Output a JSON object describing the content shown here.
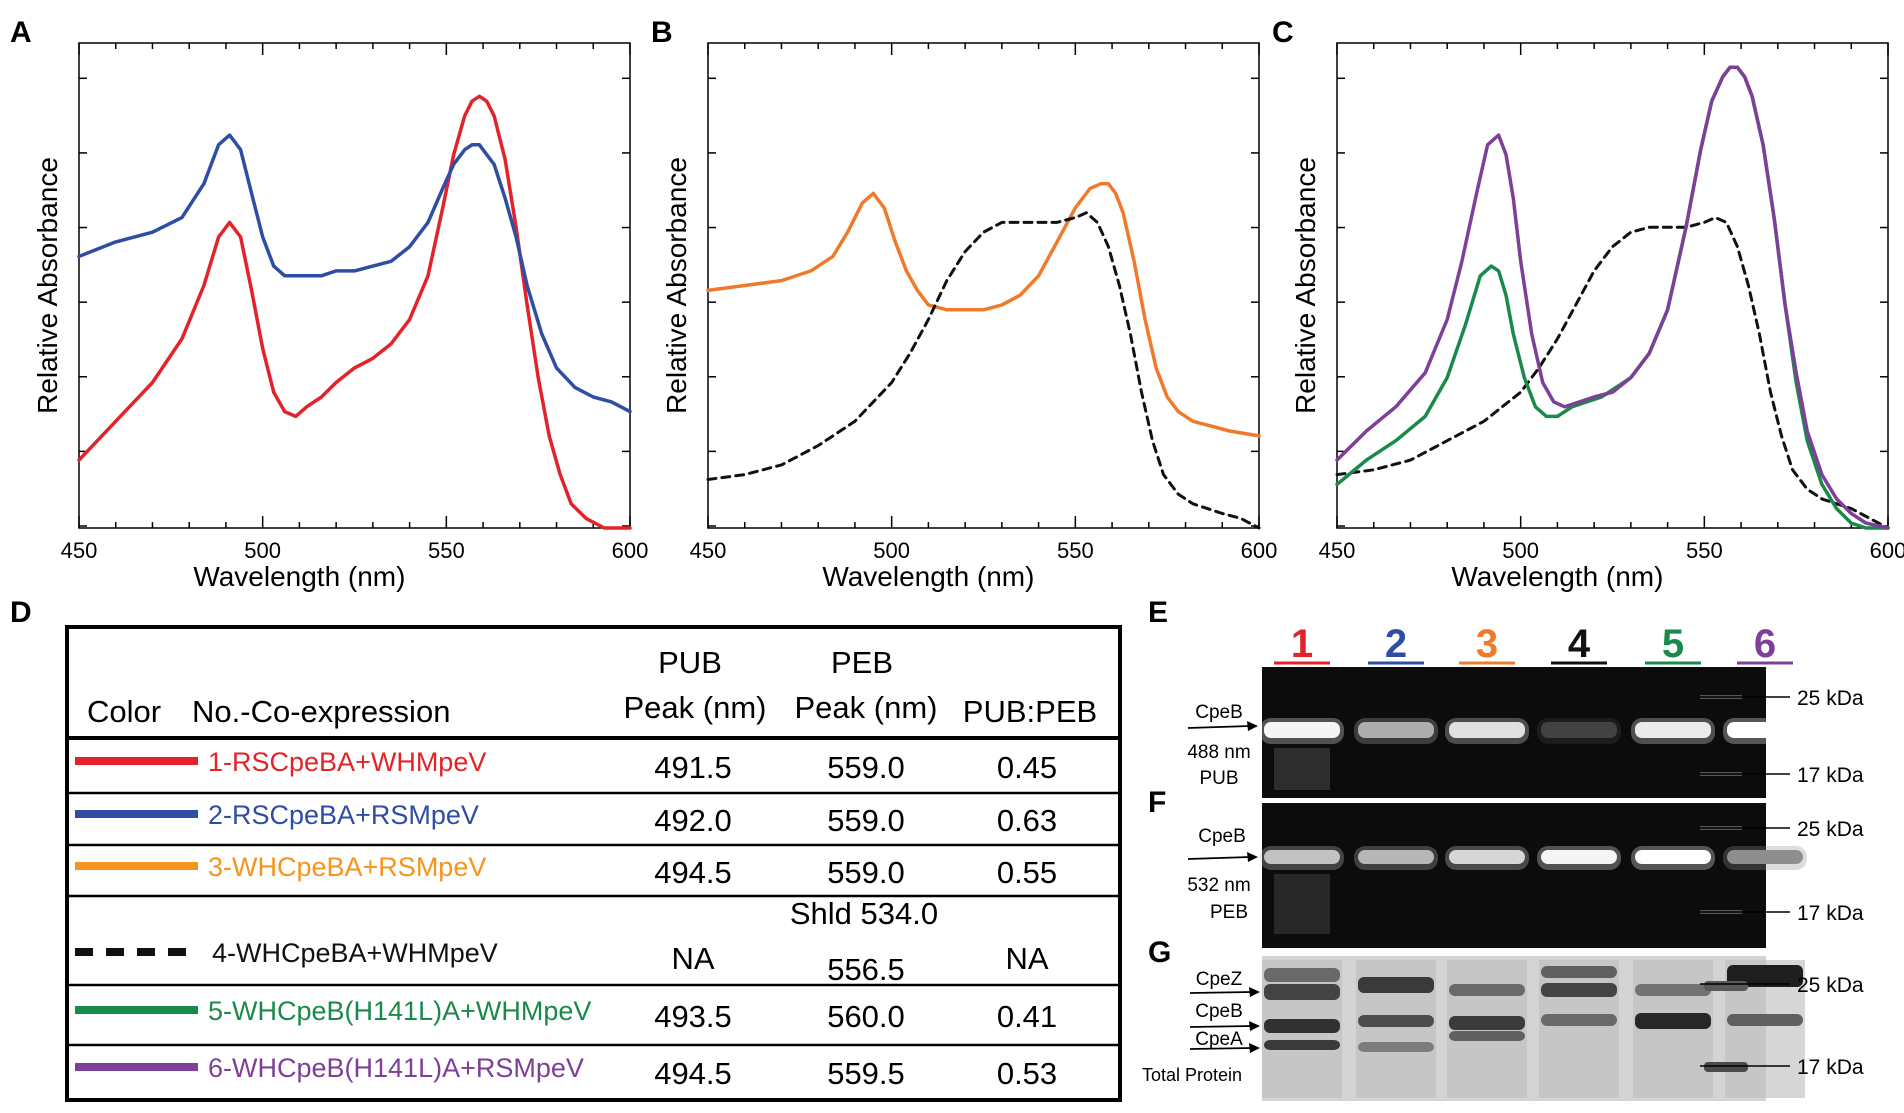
{
  "panels": {
    "A": "A",
    "B": "B",
    "C": "C",
    "D": "D",
    "E": "E",
    "F": "F",
    "G": "G"
  },
  "colors": {
    "red": "#e3232a",
    "blue": "#2f4ea3",
    "orange": "#f07a2b",
    "orange_table": "#f7941d",
    "black": "#111111",
    "green": "#1a8a4a",
    "purple": "#7d3f98"
  },
  "chart_data": [
    {
      "id": "A",
      "type": "line",
      "title": "",
      "xlabel": "Wavelength (nm)",
      "ylabel": "Relative Absorbance",
      "xlim": [
        450,
        600
      ],
      "ylim": [
        0,
        1
      ],
      "xticks": [
        450,
        500,
        550,
        600
      ],
      "series": [
        {
          "name": "1-RSCpeBA+WHMpeV",
          "color": "#e3232a",
          "dash": false,
          "x": [
            450,
            460,
            470,
            478,
            484,
            488,
            491,
            494,
            497,
            500,
            503,
            506,
            509,
            512,
            516,
            520,
            525,
            530,
            535,
            540,
            545,
            549,
            552,
            555,
            557,
            559,
            561,
            563,
            566,
            569,
            572,
            575,
            578,
            581,
            584,
            588,
            593,
            600
          ],
          "y": [
            0.14,
            0.22,
            0.3,
            0.39,
            0.5,
            0.6,
            0.63,
            0.6,
            0.49,
            0.37,
            0.28,
            0.24,
            0.23,
            0.25,
            0.27,
            0.3,
            0.33,
            0.35,
            0.38,
            0.43,
            0.52,
            0.66,
            0.77,
            0.85,
            0.88,
            0.89,
            0.88,
            0.85,
            0.76,
            0.62,
            0.46,
            0.31,
            0.19,
            0.11,
            0.05,
            0.02,
            0.0,
            -0.02
          ]
        },
        {
          "name": "2-RSCpeBA+RSMpeV",
          "color": "#2f4ea3",
          "dash": false,
          "x": [
            450,
            460,
            470,
            478,
            484,
            488,
            491,
            494,
            497,
            500,
            503,
            506,
            510,
            516,
            520,
            525,
            530,
            535,
            540,
            545,
            549,
            552,
            555,
            557,
            559,
            561,
            563,
            566,
            569,
            572,
            576,
            580,
            585,
            590,
            595,
            600
          ],
          "y": [
            0.56,
            0.59,
            0.61,
            0.64,
            0.71,
            0.79,
            0.81,
            0.78,
            0.69,
            0.6,
            0.54,
            0.52,
            0.52,
            0.52,
            0.53,
            0.53,
            0.54,
            0.55,
            0.58,
            0.63,
            0.7,
            0.75,
            0.78,
            0.79,
            0.79,
            0.77,
            0.75,
            0.68,
            0.6,
            0.5,
            0.4,
            0.33,
            0.29,
            0.27,
            0.26,
            0.24
          ]
        }
      ]
    },
    {
      "id": "B",
      "type": "line",
      "title": "",
      "xlabel": "Wavelength (nm)",
      "ylabel": "Relative Absorbance",
      "xlim": [
        450,
        600
      ],
      "ylim": [
        0,
        1
      ],
      "xticks": [
        450,
        500,
        550,
        600
      ],
      "series": [
        {
          "name": "3-WHCpeBA+RSMpeV",
          "color": "#f07a2b",
          "dash": false,
          "x": [
            450,
            460,
            470,
            478,
            484,
            488,
            492,
            495,
            498,
            501,
            504,
            507,
            510,
            515,
            520,
            525,
            530,
            535,
            540,
            545,
            550,
            554,
            557,
            559,
            561,
            563,
            566,
            569,
            572,
            575,
            578,
            582,
            587,
            592,
            600
          ],
          "y": [
            0.49,
            0.5,
            0.51,
            0.53,
            0.56,
            0.61,
            0.67,
            0.69,
            0.66,
            0.59,
            0.53,
            0.49,
            0.46,
            0.45,
            0.45,
            0.45,
            0.46,
            0.48,
            0.52,
            0.59,
            0.66,
            0.7,
            0.71,
            0.71,
            0.69,
            0.65,
            0.55,
            0.43,
            0.33,
            0.27,
            0.24,
            0.22,
            0.21,
            0.2,
            0.19
          ]
        },
        {
          "name": "4-WHCpeBA+WHMpeV",
          "color": "#111111",
          "dash": true,
          "x": [
            450,
            460,
            470,
            480,
            490,
            500,
            505,
            510,
            515,
            520,
            525,
            530,
            535,
            540,
            545,
            550,
            553,
            556,
            559,
            562,
            565,
            568,
            571,
            574,
            578,
            582,
            586,
            590,
            595,
            600
          ],
          "y": [
            0.1,
            0.11,
            0.13,
            0.17,
            0.22,
            0.3,
            0.36,
            0.43,
            0.51,
            0.57,
            0.61,
            0.63,
            0.63,
            0.63,
            0.63,
            0.64,
            0.65,
            0.63,
            0.58,
            0.5,
            0.4,
            0.28,
            0.18,
            0.11,
            0.07,
            0.05,
            0.04,
            0.03,
            0.02,
            0.0
          ]
        }
      ]
    },
    {
      "id": "C",
      "type": "line",
      "title": "",
      "xlabel": "Wavelength (nm)",
      "ylabel": "Relative Absorbance",
      "xlim": [
        450,
        600
      ],
      "ylim": [
        0,
        1
      ],
      "xticks": [
        450,
        500,
        550,
        600
      ],
      "series": [
        {
          "name": "4-WHCpeBA+WHMpeV",
          "color": "#111111",
          "dash": true,
          "x": [
            450,
            460,
            470,
            480,
            490,
            500,
            505,
            510,
            515,
            520,
            525,
            530,
            535,
            540,
            545,
            550,
            553,
            556,
            559,
            562,
            565,
            568,
            571,
            574,
            578,
            582,
            586,
            590,
            595,
            600
          ],
          "y": [
            0.11,
            0.12,
            0.14,
            0.18,
            0.22,
            0.28,
            0.33,
            0.39,
            0.46,
            0.53,
            0.58,
            0.61,
            0.62,
            0.62,
            0.62,
            0.63,
            0.64,
            0.63,
            0.58,
            0.5,
            0.4,
            0.28,
            0.19,
            0.12,
            0.08,
            0.06,
            0.05,
            0.04,
            0.02,
            0.0
          ]
        },
        {
          "name": "5-WHCpeB(H141L)A+WHMpeV",
          "color": "#1a8a4a",
          "dash": false,
          "x": [
            450,
            458,
            466,
            474,
            480,
            485,
            489,
            492,
            494,
            496,
            498,
            501,
            504,
            507,
            510,
            514,
            518,
            522,
            526,
            530,
            535,
            540,
            545,
            549,
            552,
            555,
            557,
            559,
            561,
            563,
            566,
            569,
            572,
            575,
            578,
            582,
            586,
            590,
            594,
            600
          ],
          "y": [
            0.09,
            0.14,
            0.18,
            0.23,
            0.31,
            0.42,
            0.52,
            0.54,
            0.53,
            0.48,
            0.4,
            0.31,
            0.25,
            0.23,
            0.23,
            0.25,
            0.26,
            0.27,
            0.29,
            0.31,
            0.36,
            0.45,
            0.62,
            0.78,
            0.88,
            0.93,
            0.95,
            0.95,
            0.93,
            0.89,
            0.79,
            0.64,
            0.46,
            0.3,
            0.18,
            0.09,
            0.04,
            0.01,
            -0.01,
            -0.03
          ]
        },
        {
          "name": "6-WHCpeB(H141L)A+RSMpeV",
          "color": "#7d3f98",
          "dash": false,
          "x": [
            450,
            458,
            466,
            474,
            480,
            484,
            488,
            491,
            494,
            496,
            498,
            500,
            503,
            506,
            509,
            512,
            516,
            520,
            525,
            530,
            535,
            540,
            545,
            549,
            552,
            555,
            557,
            559,
            561,
            563,
            566,
            569,
            572,
            575,
            578,
            582,
            586,
            590,
            594,
            600
          ],
          "y": [
            0.14,
            0.2,
            0.25,
            0.32,
            0.43,
            0.55,
            0.69,
            0.79,
            0.81,
            0.77,
            0.68,
            0.55,
            0.4,
            0.3,
            0.26,
            0.25,
            0.26,
            0.27,
            0.28,
            0.31,
            0.36,
            0.45,
            0.62,
            0.78,
            0.88,
            0.93,
            0.95,
            0.95,
            0.93,
            0.89,
            0.79,
            0.64,
            0.46,
            0.32,
            0.2,
            0.11,
            0.06,
            0.03,
            0.01,
            0.0
          ]
        }
      ]
    }
  ],
  "table": {
    "headers": {
      "color": "Color",
      "no": "No.-Co-expression",
      "pub_1": "PUB",
      "pub_2": "Peak (nm)",
      "peb_1": "PEB",
      "peb_2": "Peak (nm)",
      "ratio": "PUB:PEB"
    },
    "rows": [
      {
        "label": "1-RSCpeBA+WHMpeV",
        "color": "#e3232a",
        "dash": false,
        "pub": "491.5",
        "peb": "559.0",
        "peb2": "",
        "ratio": "0.45"
      },
      {
        "label": "2-RSCpeBA+RSMpeV",
        "color": "#2f4ea3",
        "dash": false,
        "pub": "492.0",
        "peb": "559.0",
        "peb2": "",
        "ratio": "0.63"
      },
      {
        "label": "3-WHCpeBA+RSMpeV",
        "color": "#f7941d",
        "dash": false,
        "pub": "494.5",
        "peb": "559.0",
        "peb2": "",
        "ratio": "0.55"
      },
      {
        "label": "4-WHCpeBA+WHMpeV",
        "color": "#111111",
        "dash": true,
        "pub": "NA",
        "peb": "Shld 534.0",
        "peb2": "556.5",
        "ratio": "NA"
      },
      {
        "label": "5-WHCpeB(H141L)A+WHMpeV",
        "color": "#1a8a4a",
        "dash": false,
        "pub": "493.5",
        "peb": "560.0",
        "peb2": "",
        "ratio": "0.41"
      },
      {
        "label": "6-WHCpeB(H141L)A+RSMpeV",
        "color": "#7d3f98",
        "dash": false,
        "pub": "494.5",
        "peb": "559.5",
        "peb2": "",
        "ratio": "0.53"
      }
    ]
  },
  "gels": {
    "lanes": [
      {
        "num": "1",
        "color": "#e3232a"
      },
      {
        "num": "2",
        "color": "#2f4ea3"
      },
      {
        "num": "3",
        "color": "#f07a2b"
      },
      {
        "num": "4",
        "color": "#111111"
      },
      {
        "num": "5",
        "color": "#1a8a4a"
      },
      {
        "num": "6",
        "color": "#7d3f98"
      }
    ],
    "E": {
      "band": "CpeB",
      "wavelength": "488 nm",
      "chromophore": "PUB",
      "marker_hi": "25 kDa",
      "marker_lo": "17 kDa",
      "intensities": [
        0.95,
        0.6,
        0.85,
        0.08,
        0.9,
        1.0
      ]
    },
    "F": {
      "band": "CpeB",
      "wavelength": "532 nm",
      "chromophore": "PEB",
      "marker_hi": "25 kDa",
      "marker_lo": "17 kDa",
      "intensities": [
        0.7,
        0.65,
        0.8,
        0.95,
        1.0,
        0.45
      ]
    },
    "G": {
      "label_z": "CpeZ",
      "label_b": "CpeB",
      "label_a": "CpeA",
      "caption": "Total Protein",
      "marker_hi": "25 kDa",
      "marker_lo": "17 kDa"
    }
  }
}
